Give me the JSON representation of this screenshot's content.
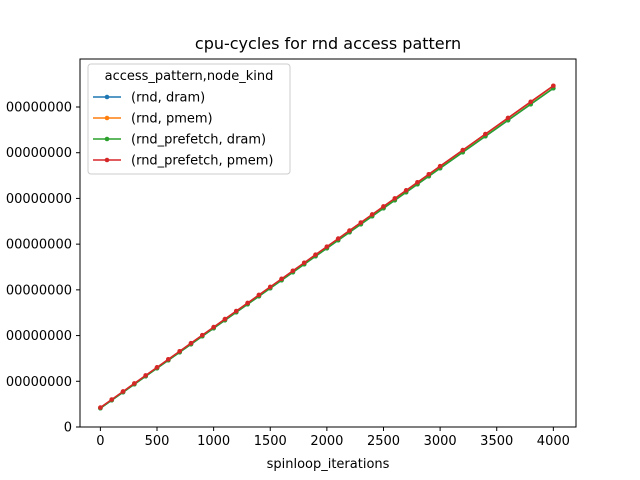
{
  "chart_data": {
    "type": "line",
    "title": "cpu-cycles for rnd access pattern",
    "xlabel": "spinloop_iterations",
    "ylabel": "",
    "xlim": [
      -180,
      4200
    ],
    "ylim": [
      0,
      80500000
    ],
    "x_ticks": [
      0,
      500,
      1000,
      1500,
      2000,
      2500,
      3000,
      3500,
      4000
    ],
    "y_ticks": [
      {
        "value": 0,
        "label": "0"
      },
      {
        "value": 10000000,
        "label": "00000000"
      },
      {
        "value": 20000000,
        "label": "00000000"
      },
      {
        "value": 30000000,
        "label": "00000000"
      },
      {
        "value": 40000000,
        "label": "00000000"
      },
      {
        "value": 50000000,
        "label": "00000000"
      },
      {
        "value": 60000000,
        "label": "00000000"
      },
      {
        "value": 70000000,
        "label": "00000000"
      }
    ],
    "grid": false,
    "legend": {
      "title": "access_pattern,node_kind",
      "placement": "top-left"
    },
    "x": [
      0,
      100,
      200,
      300,
      400,
      500,
      600,
      700,
      800,
      900,
      1000,
      1100,
      1200,
      1300,
      1400,
      1500,
      1600,
      1700,
      1800,
      1900,
      2000,
      2100,
      2200,
      2300,
      2400,
      2500,
      2600,
      2700,
      2800,
      2900,
      3000,
      3200,
      3400,
      3600,
      3800,
      4000
    ],
    "series": [
      {
        "name": "(rnd, dram)",
        "color": "#1f77b4",
        "values": [
          4100000,
          5850000,
          7600000,
          9350000,
          11100000,
          12850000,
          14600000,
          16350000,
          18100000,
          19850000,
          21600000,
          23350000,
          25100000,
          26850000,
          28600000,
          30350000,
          32100000,
          33850000,
          35600000,
          37350000,
          39100000,
          40850000,
          42600000,
          44350000,
          46100000,
          47850000,
          49600000,
          51350000,
          53100000,
          54850000,
          56600000,
          60100000,
          63600000,
          67100000,
          70600000,
          74100000
        ]
      },
      {
        "name": "(rnd, pmem)",
        "color": "#ff7f0e",
        "values": [
          4200000,
          5960000,
          7720000,
          9480000,
          11240000,
          13000000,
          14760000,
          16520000,
          18280000,
          20040000,
          21800000,
          23560000,
          25320000,
          27080000,
          28840000,
          30600000,
          32360000,
          34120000,
          35880000,
          37640000,
          39400000,
          41160000,
          42920000,
          44680000,
          46440000,
          48200000,
          49960000,
          51720000,
          53480000,
          55240000,
          57000000,
          60520000,
          64040000,
          67560000,
          71080000,
          74600000
        ]
      },
      {
        "name": "(rnd_prefetch, dram)",
        "color": "#2ca02c",
        "values": [
          4100000,
          5850000,
          7600000,
          9350000,
          11100000,
          12850000,
          14600000,
          16350000,
          18100000,
          19850000,
          21600000,
          23350000,
          25100000,
          26850000,
          28600000,
          30350000,
          32100000,
          33850000,
          35600000,
          37350000,
          39100000,
          40850000,
          42600000,
          44350000,
          46100000,
          47850000,
          49600000,
          51350000,
          53100000,
          54850000,
          56600000,
          60100000,
          63600000,
          67100000,
          70600000,
          74100000
        ]
      },
      {
        "name": "(rnd_prefetch, pmem)",
        "color": "#d62728",
        "values": [
          4250000,
          6010000,
          7770000,
          9530000,
          11290000,
          13050000,
          14810000,
          16570000,
          18330000,
          20090000,
          21850000,
          23610000,
          25370000,
          27130000,
          28890000,
          30650000,
          32410000,
          34170000,
          35930000,
          37690000,
          39450000,
          41210000,
          42970000,
          44730000,
          46490000,
          48250000,
          50010000,
          51770000,
          53530000,
          55290000,
          57050000,
          60570000,
          64090000,
          67610000,
          71130000,
          74650000
        ]
      }
    ]
  }
}
